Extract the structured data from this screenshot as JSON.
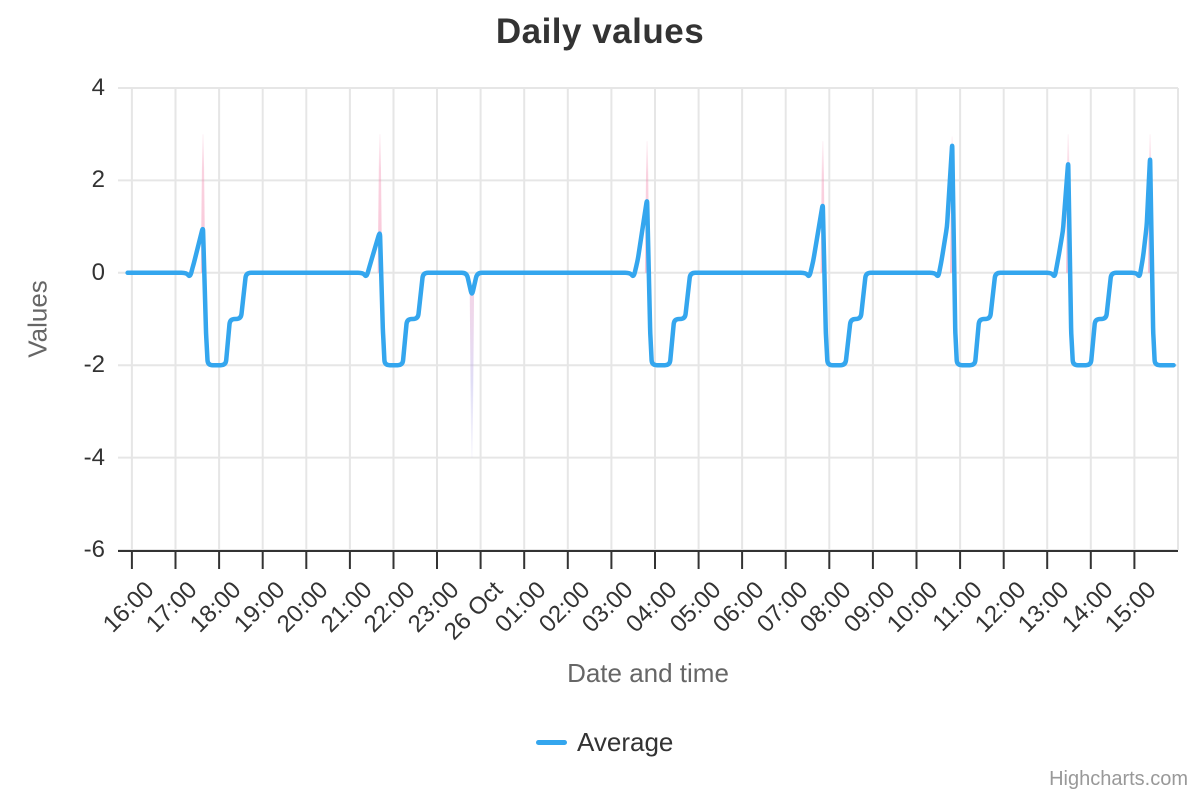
{
  "credits": "Highcharts.com",
  "chart_data": {
    "type": "line",
    "title": "Daily values",
    "xlabel": "Date and time",
    "ylabel": "Values",
    "ylim": [
      -6,
      4
    ],
    "xlim_hours": [
      15.68,
      40
    ],
    "grid": true,
    "legend_position": "bottom-center",
    "yticks": [
      4,
      2,
      0,
      -2,
      -4,
      -6
    ],
    "xticks": [
      {
        "t": 16,
        "label": "16:00"
      },
      {
        "t": 17,
        "label": "17:00"
      },
      {
        "t": 18,
        "label": "18:00"
      },
      {
        "t": 19,
        "label": "19:00"
      },
      {
        "t": 20,
        "label": "20:00"
      },
      {
        "t": 21,
        "label": "21:00"
      },
      {
        "t": 22,
        "label": "22:00"
      },
      {
        "t": 23,
        "label": "23:00"
      },
      {
        "t": 24,
        "label": "26 Oct"
      },
      {
        "t": 25,
        "label": "01:00"
      },
      {
        "t": 26,
        "label": "02:00"
      },
      {
        "t": 27,
        "label": "03:00"
      },
      {
        "t": 28,
        "label": "04:00"
      },
      {
        "t": 29,
        "label": "05:00"
      },
      {
        "t": 30,
        "label": "06:00"
      },
      {
        "t": 31,
        "label": "07:00"
      },
      {
        "t": 32,
        "label": "08:00"
      },
      {
        "t": 33,
        "label": "09:00"
      },
      {
        "t": 34,
        "label": "10:00"
      },
      {
        "t": 35,
        "label": "11:00"
      },
      {
        "t": 36,
        "label": "12:00"
      },
      {
        "t": 37,
        "label": "13:00"
      },
      {
        "t": 38,
        "label": "14:00"
      },
      {
        "t": 39,
        "label": "15:00"
      }
    ],
    "series": [
      {
        "name": "Average",
        "color": "#34a6ee",
        "points": [
          [
            15.9,
            0
          ],
          [
            17.25,
            0
          ],
          [
            17.33,
            -0.1
          ],
          [
            17.42,
            0.2
          ],
          [
            17.63,
            1.0
          ],
          [
            17.7,
            -1.3
          ],
          [
            17.74,
            -2
          ],
          [
            18.15,
            -2
          ],
          [
            18.25,
            -1
          ],
          [
            18.5,
            -1
          ],
          [
            18.62,
            0
          ],
          [
            21.3,
            0
          ],
          [
            21.38,
            -0.1
          ],
          [
            21.47,
            0.2
          ],
          [
            21.69,
            0.9
          ],
          [
            21.76,
            -1.3
          ],
          [
            21.8,
            -2
          ],
          [
            22.21,
            -2
          ],
          [
            22.31,
            -1
          ],
          [
            22.56,
            -1
          ],
          [
            22.68,
            0
          ],
          [
            23.68,
            0
          ],
          [
            23.8,
            -0.5
          ],
          [
            23.92,
            0
          ],
          [
            27.43,
            0
          ],
          [
            27.51,
            -0.1
          ],
          [
            27.6,
            0.25
          ],
          [
            27.82,
            1.6
          ],
          [
            27.89,
            -1.3
          ],
          [
            27.93,
            -2
          ],
          [
            28.34,
            -2
          ],
          [
            28.44,
            -1
          ],
          [
            28.69,
            -1
          ],
          [
            28.81,
            0
          ],
          [
            31.46,
            0
          ],
          [
            31.54,
            -0.1
          ],
          [
            31.63,
            0.25
          ],
          [
            31.85,
            1.5
          ],
          [
            31.92,
            -1.3
          ],
          [
            31.96,
            -2
          ],
          [
            32.37,
            -2
          ],
          [
            32.49,
            -1
          ],
          [
            32.72,
            -1
          ],
          [
            32.84,
            0
          ],
          [
            34.42,
            0
          ],
          [
            34.5,
            -0.1
          ],
          [
            34.58,
            0.3
          ],
          [
            34.7,
            1.0
          ],
          [
            34.82,
            2.8
          ],
          [
            34.89,
            -1.3
          ],
          [
            34.93,
            -2
          ],
          [
            35.34,
            -2
          ],
          [
            35.44,
            -1
          ],
          [
            35.69,
            -1
          ],
          [
            35.81,
            0
          ],
          [
            37.1,
            0
          ],
          [
            37.17,
            -0.1
          ],
          [
            37.25,
            0.3
          ],
          [
            37.36,
            0.9
          ],
          [
            37.48,
            2.4
          ],
          [
            37.55,
            -1.3
          ],
          [
            37.59,
            -2
          ],
          [
            38.0,
            -2
          ],
          [
            38.1,
            -1
          ],
          [
            38.35,
            -1
          ],
          [
            38.47,
            0
          ],
          [
            39.05,
            0
          ],
          [
            39.12,
            -0.1
          ],
          [
            39.2,
            0.35
          ],
          [
            39.28,
            1.0
          ],
          [
            39.36,
            2.5
          ],
          [
            39.43,
            -1.3
          ],
          [
            39.47,
            -2
          ],
          [
            39.9,
            -2
          ]
        ]
      }
    ],
    "extreme_spikes_up": {
      "color": "rgba(242,139,175,0.5)",
      "spikes": [
        {
          "t": 17.63,
          "from": 0,
          "top": 3.0
        },
        {
          "t": 21.69,
          "from": 0,
          "top": 3.0
        },
        {
          "t": 27.82,
          "from": 0,
          "top": 2.85
        },
        {
          "t": 31.85,
          "from": 0,
          "top": 2.85
        },
        {
          "t": 34.82,
          "from": 0,
          "top": 2.95
        },
        {
          "t": 37.48,
          "from": 0,
          "top": 3.0
        },
        {
          "t": 39.36,
          "from": 0,
          "top": 3.0
        }
      ]
    },
    "extreme_spike_down": {
      "color": "rgba(200,195,238,0.5)",
      "t": 23.8,
      "from": -0.35,
      "to": -4.0
    }
  }
}
